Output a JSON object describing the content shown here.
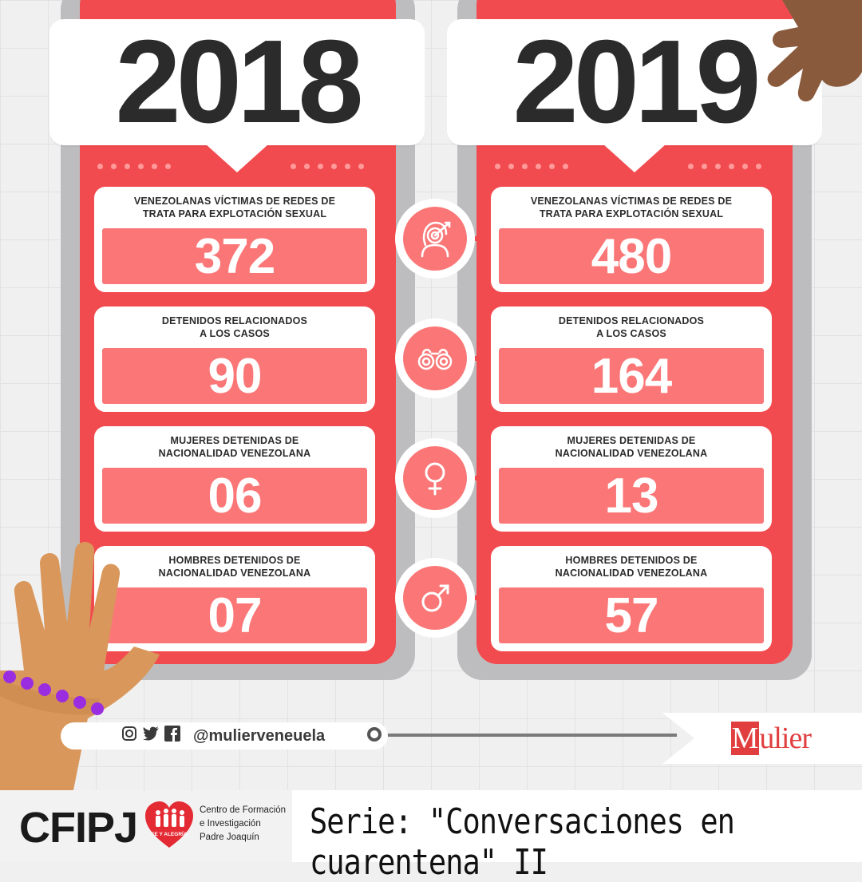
{
  "columns": [
    {
      "year": "2018",
      "stats": [
        {
          "label": "VENEZOLANAS VÍCTIMAS DE REDES DE\nTRATA PARA EXPLOTACIÓN SEXUAL",
          "value": "372"
        },
        {
          "label": "DETENIDOS RELACIONADOS\nA LOS CASOS",
          "value": "90"
        },
        {
          "label": "MUJERES DETENIDAS DE\nNACIONALIDAD VENEZOLANA",
          "value": "06"
        },
        {
          "label": "HOMBRES DETENIDOS DE\nNACIONALIDAD VENEZOLANA",
          "value": "07"
        }
      ]
    },
    {
      "year": "2019",
      "stats": [
        {
          "label": "VENEZOLANAS VÍCTIMAS DE REDES DE\nTRATA PARA EXPLOTACIÓN SEXUAL",
          "value": "480"
        },
        {
          "label": "DETENIDOS RELACIONADOS\nA LOS CASOS",
          "value": "164"
        },
        {
          "label": "MUJERES DETENIDAS DE\nNACIONALIDAD VENEZOLANA",
          "value": "13"
        },
        {
          "label": "HOMBRES DETENIDOS DE\nNACIONALIDAD VENEZOLANA",
          "value": "57"
        }
      ]
    }
  ],
  "icons": [
    "woman-target-icon",
    "handcuffs-icon",
    "female-symbol-icon",
    "male-symbol-icon"
  ],
  "social": {
    "icons": [
      "instagram-icon",
      "twitter-icon",
      "facebook-icon"
    ],
    "handle": "@mulierveneuela"
  },
  "brand": {
    "logo": "Mulier",
    "logo_initial": "M",
    "logo_rest": "ulier"
  },
  "footer": {
    "org": "CFIPJ",
    "heart_text": "FE Y ALEGRÍA",
    "subtitle": "Centro de Formación\ne Investigación\nPadre Joaquín",
    "series": "Serie: \"Conversaciones en cuarentena\" II"
  },
  "colors": {
    "phone": "#f24b4f",
    "value_bg": "#fb7777",
    "text_dark": "#2b2b2b",
    "bracelet": "#9b2de0",
    "skin_light": "#d9975b",
    "skin_dark": "#8a5a3c"
  }
}
